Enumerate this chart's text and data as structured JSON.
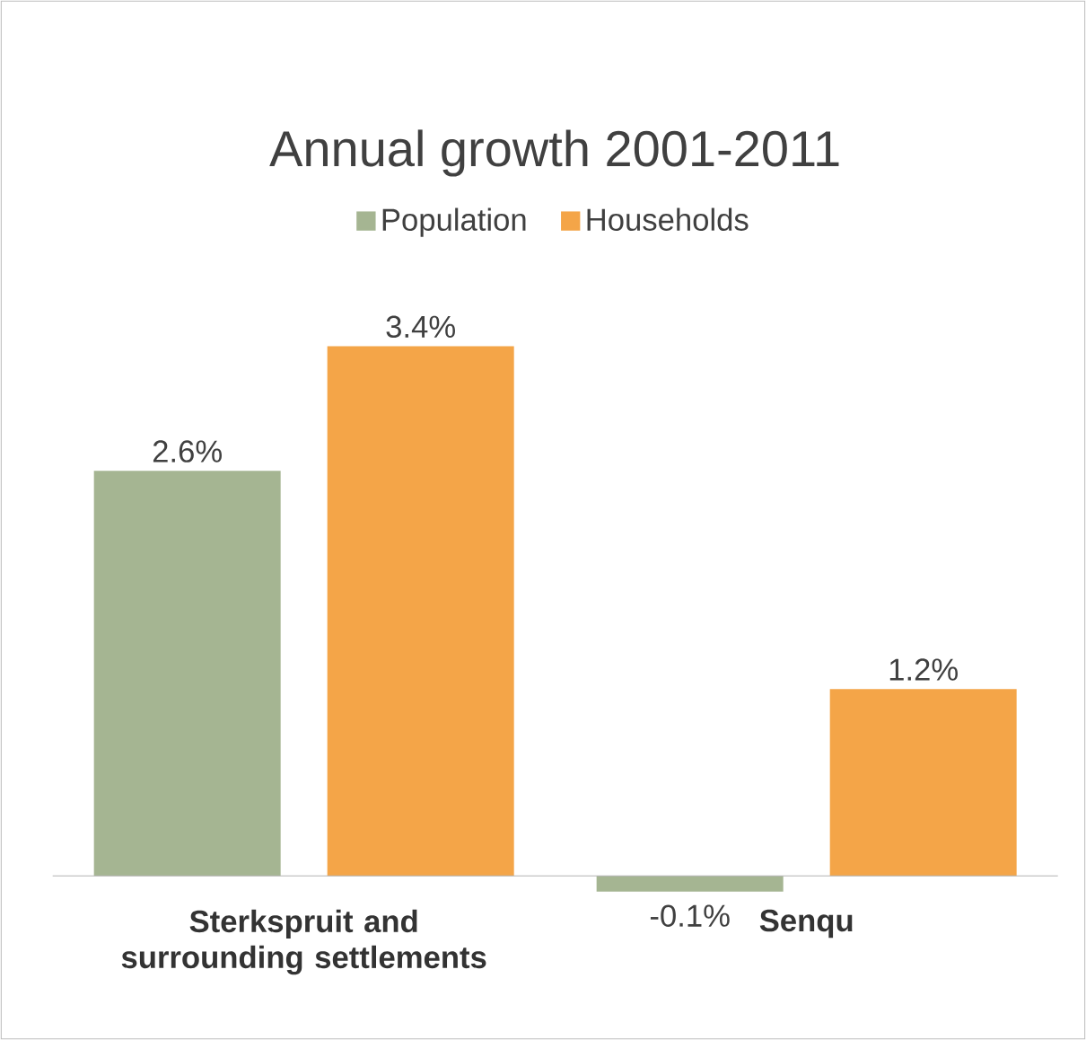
{
  "chart_data": {
    "type": "bar",
    "title": "Annual growth 2001-2011",
    "categories": [
      "Sterkspruit and surrounding settlements",
      "Senqu"
    ],
    "legend": "top",
    "series": [
      {
        "name": "Population",
        "color": "#a5b592",
        "values": [
          2.6,
          -0.1
        ],
        "value_labels": [
          "2.6%",
          "-0.1%"
        ]
      },
      {
        "name": "Households",
        "color": "#f4a548",
        "values": [
          3.4,
          1.2
        ],
        "value_labels": [
          "3.4%",
          "1.2%"
        ]
      }
    ]
  }
}
